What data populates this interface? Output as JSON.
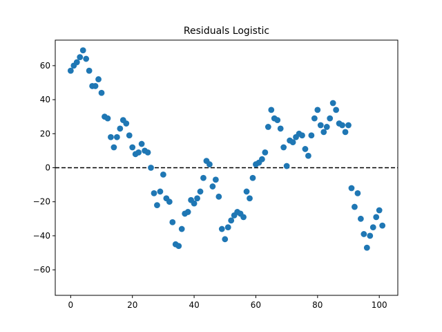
{
  "chart_data": {
    "type": "scatter",
    "title": "Residuals Logistic",
    "xlabel": "",
    "ylabel": "",
    "xlim": [
      -5,
      106
    ],
    "ylim": [
      -75,
      75
    ],
    "x_ticks": [
      0,
      20,
      40,
      60,
      80,
      100
    ],
    "y_ticks": [
      -60,
      -40,
      -20,
      0,
      20,
      40,
      60
    ],
    "grid": false,
    "reference_line": {
      "y": 0,
      "style": "dashed",
      "color": "#000000"
    },
    "marker_color": "#1f77b4",
    "series": [
      {
        "x": [
          0,
          1,
          2,
          3,
          4,
          5,
          6,
          7,
          8,
          9,
          10,
          11,
          12,
          13,
          14,
          15,
          16,
          17,
          18,
          19,
          20,
          21,
          22,
          23,
          24,
          25,
          26,
          27,
          28,
          29,
          30,
          31,
          32,
          33,
          34,
          35,
          36,
          37,
          38,
          39,
          40,
          41,
          42,
          43,
          44,
          45,
          46,
          47,
          48,
          49,
          50,
          51,
          52,
          53,
          54,
          55,
          56,
          57,
          58,
          59,
          60,
          61,
          62,
          63,
          64,
          65,
          66,
          67,
          68,
          69,
          70,
          71,
          72,
          73,
          74,
          75,
          76,
          77,
          78,
          79,
          80,
          81,
          82,
          83,
          84,
          85,
          86,
          87,
          88,
          89,
          90,
          91,
          92,
          93,
          94,
          95,
          96,
          97,
          98,
          99,
          100,
          101
        ],
        "y": [
          57,
          60,
          62,
          65,
          69,
          64,
          57,
          48,
          48,
          52,
          44,
          30,
          29,
          18,
          12,
          18,
          23,
          28,
          26,
          19,
          12,
          8,
          9,
          14,
          10,
          9,
          0,
          -15,
          -22,
          -14,
          -4,
          -18,
          -20,
          -32,
          -45,
          -46,
          -36,
          -27,
          -26,
          -19,
          -21,
          -18,
          -14,
          -6,
          4,
          2,
          -11,
          -7,
          -17,
          -36,
          -42,
          -35,
          -31,
          -28,
          -26,
          -27,
          -29,
          -14,
          -18,
          -6,
          2,
          3,
          5,
          9,
          24,
          34,
          29,
          28,
          23,
          12,
          1,
          16,
          15,
          18,
          20,
          19,
          11,
          7,
          19,
          29,
          34,
          25,
          21,
          24,
          29,
          38,
          34,
          26,
          25,
          21,
          25,
          -12,
          -23,
          -15,
          -30,
          -39,
          -47,
          -40,
          -35,
          -29,
          -25,
          -34
        ]
      }
    ]
  }
}
